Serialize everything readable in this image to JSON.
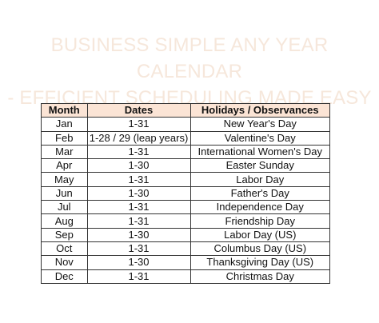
{
  "title": {
    "line1": "BUSINESS SIMPLE ANY YEAR CALENDAR",
    "line2": "- EFFICIENT SCHEDULING MADE EASY"
  },
  "table": {
    "headers": [
      "Month",
      "Dates",
      "Holidays / Observances"
    ],
    "rows": [
      {
        "month": "Jan",
        "dates": "1-31",
        "holiday": "New Year's Day"
      },
      {
        "month": "Feb",
        "dates": "1-28 / 29 (leap years)",
        "holiday": "Valentine's Day"
      },
      {
        "month": "Mar",
        "dates": "1-31",
        "holiday": "International Women's Day"
      },
      {
        "month": "Apr",
        "dates": "1-30",
        "holiday": "Easter Sunday"
      },
      {
        "month": "May",
        "dates": "1-31",
        "holiday": "Labor Day"
      },
      {
        "month": "Jun",
        "dates": "1-30",
        "holiday": "Father's Day"
      },
      {
        "month": "Jul",
        "dates": "1-31",
        "holiday": "Independence Day"
      },
      {
        "month": "Aug",
        "dates": "1-31",
        "holiday": "Friendship Day"
      },
      {
        "month": "Sep",
        "dates": "1-30",
        "holiday": "Labor Day (US)"
      },
      {
        "month": "Oct",
        "dates": "1-31",
        "holiday": "Columbus Day (US)"
      },
      {
        "month": "Nov",
        "dates": "1-30",
        "holiday": "Thanksgiving Day (US)"
      },
      {
        "month": "Dec",
        "dates": "1-31",
        "holiday": "Christmas Day"
      }
    ]
  },
  "colors": {
    "header_fill": "#fbe4d5",
    "title_text": "#f6e7db",
    "grid_line": "#333333"
  }
}
